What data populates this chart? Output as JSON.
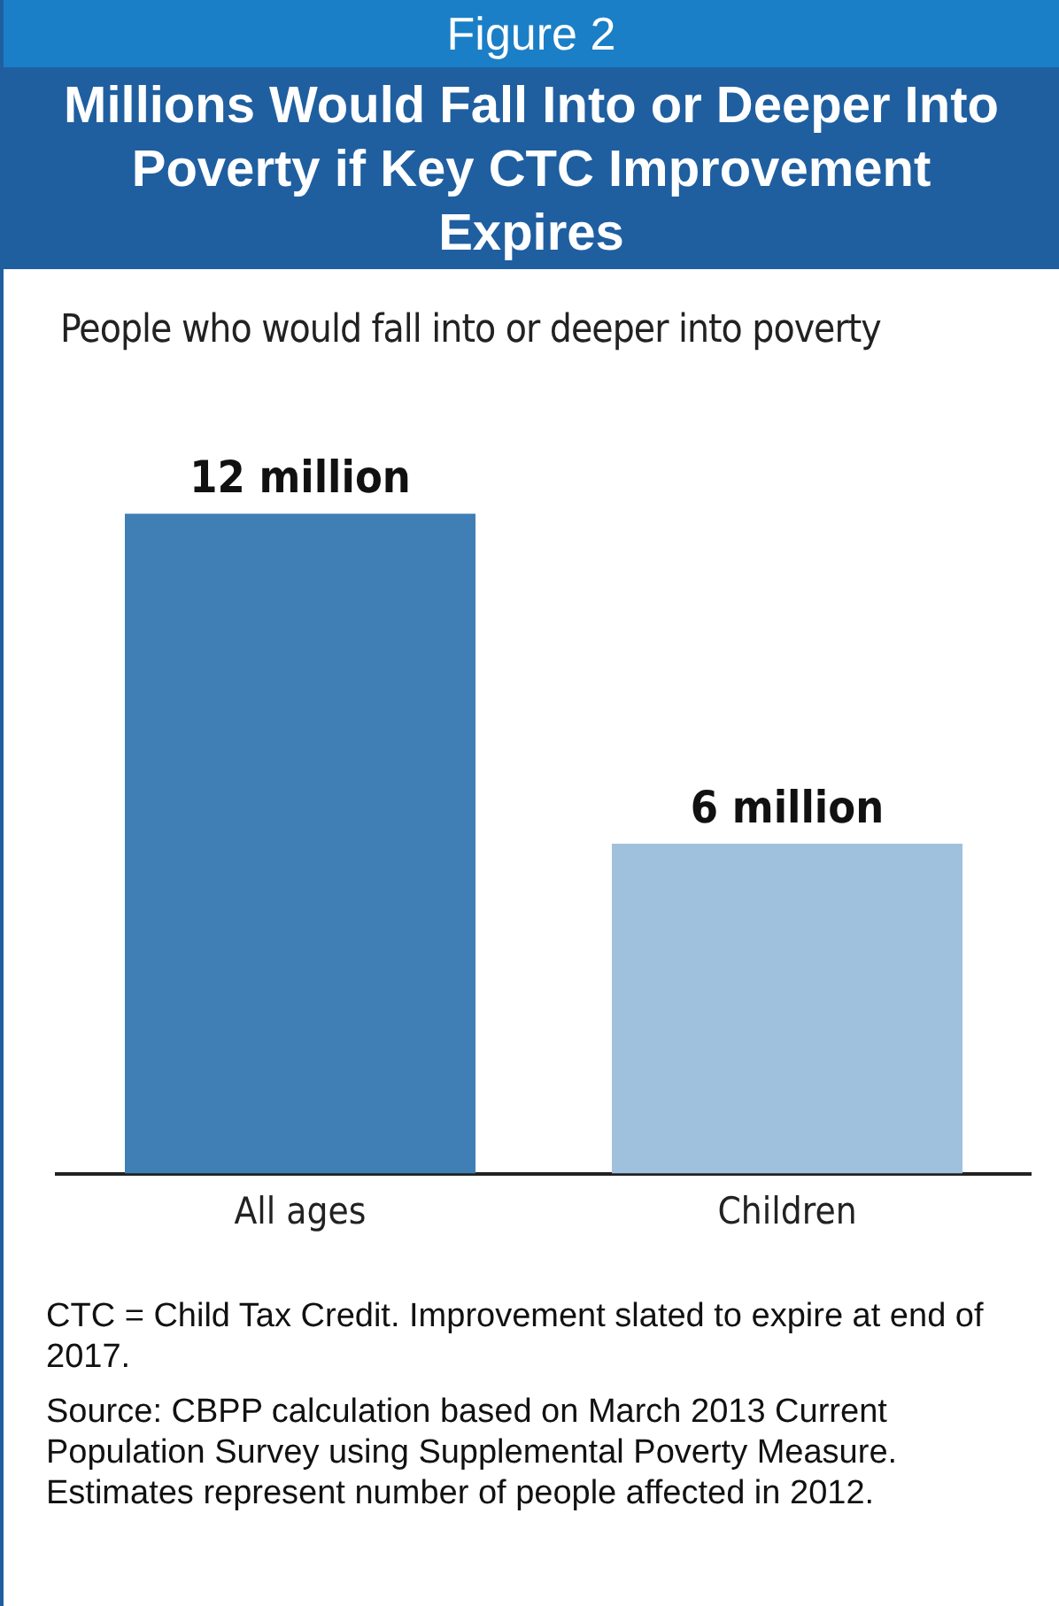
{
  "chart_data": {
    "type": "bar",
    "title": "Millions Would Fall Into or Deeper Into Poverty if Key CTC Improvement Expires",
    "subtitle": "People who would fall into or deeper into poverty",
    "categories": [
      "All ages",
      "Children"
    ],
    "values": [
      12,
      6
    ],
    "colors": [
      "#3f7fb5",
      "#9fc1dd"
    ],
    "value_labels": [
      "12 million",
      "6 million"
    ],
    "annotations": [
      "Figure 2",
      "CTC = Child Tax Credit.  Improvement slated to expire at end of 2017.",
      "Source: CBPP calculation based on March 2013 Current Population Survey using Supplemental Poverty Measure. Estimates represent number of people affected in 2012."
    ]
  }
}
